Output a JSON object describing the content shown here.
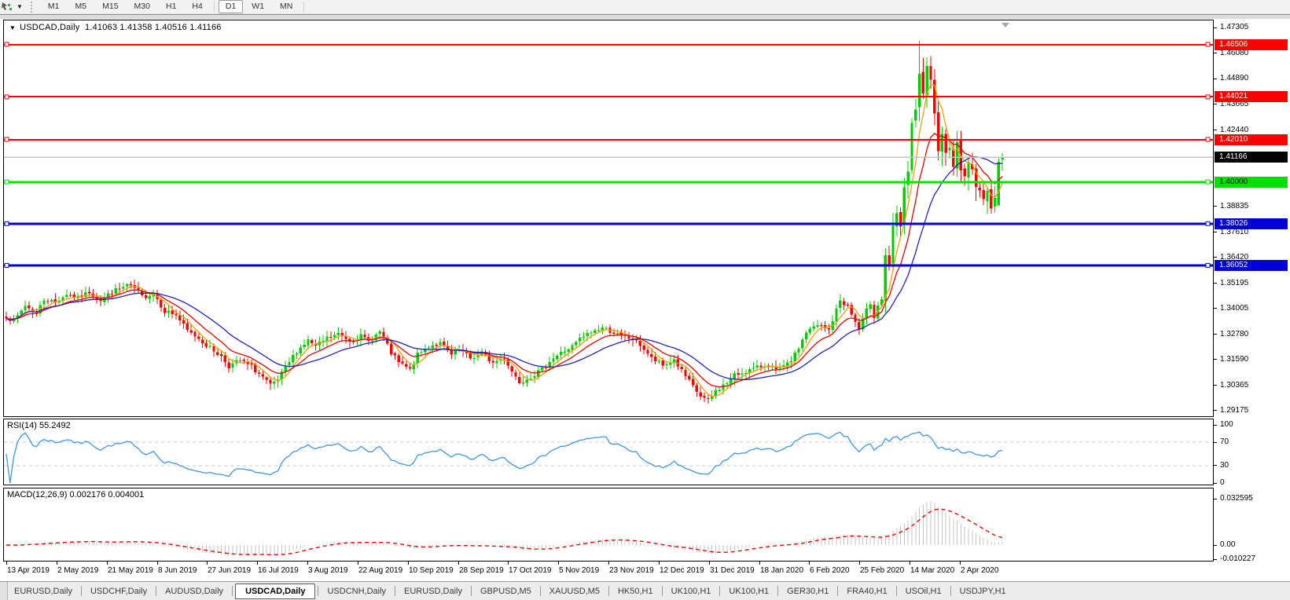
{
  "toolbar": {
    "timeframes": [
      "M1",
      "M5",
      "M15",
      "M30",
      "H1",
      "H4",
      "D1",
      "W1",
      "MN"
    ],
    "active_timeframe": "D1"
  },
  "icons": {
    "chart_mode": "cursor-chart-icon",
    "toolbar_dropdown": "▼",
    "symbol_dropdown": "▼",
    "shift_marker": "▼"
  },
  "chart": {
    "title_symbol": "USDCAD,Daily",
    "title_ohlc": "1.41063 1.41358 1.40516 1.41166"
  },
  "rsi": {
    "label": "RSI(14) 55.2492"
  },
  "macd": {
    "label": "MACD(12,26,9) 0.002176 0.004001"
  },
  "price_axis": {
    "ticks": [
      {
        "label": "1.47305",
        "price": 1.47305
      },
      {
        "label": "1.46080",
        "price": 1.4608
      },
      {
        "label": "1.44890",
        "price": 1.4489
      },
      {
        "label": "1.43665",
        "price": 1.43665
      },
      {
        "label": "1.42440",
        "price": 1.4244
      },
      {
        "label": "1.38835",
        "price": 1.38835
      },
      {
        "label": "1.37610",
        "price": 1.3761
      },
      {
        "label": "1.36420",
        "price": 1.3642
      },
      {
        "label": "1.35195",
        "price": 1.35195
      },
      {
        "label": "1.34005",
        "price": 1.34005
      },
      {
        "label": "1.32780",
        "price": 1.3278
      },
      {
        "label": "1.31590",
        "price": 1.3159
      },
      {
        "label": "1.30365",
        "price": 1.30365
      },
      {
        "label": "1.29175",
        "price": 1.29175
      }
    ],
    "badges": [
      {
        "label": "1.46506",
        "price": 1.46506,
        "bg": "#fb0000",
        "fg": "#ffffff"
      },
      {
        "label": "1.44021",
        "price": 1.44021,
        "bg": "#fb0000",
        "fg": "#ffffff"
      },
      {
        "label": "1.42010",
        "price": 1.4201,
        "bg": "#fb0000",
        "fg": "#ffffff"
      },
      {
        "label": "1.41166",
        "price": 1.41166,
        "bg": "#000000",
        "fg": "#ffffff"
      },
      {
        "label": "1.40000",
        "price": 1.4,
        "bg": "#00e000",
        "fg": "#000000"
      },
      {
        "label": "1.38026",
        "price": 1.38026,
        "bg": "#0000d7",
        "fg": "#ffffff"
      },
      {
        "label": "1.36052",
        "price": 1.36052,
        "bg": "#0000d7",
        "fg": "#ffffff"
      }
    ],
    "rsi_ticks": [
      {
        "label": "100",
        "v": 100
      },
      {
        "label": "70",
        "v": 70
      },
      {
        "label": "30",
        "v": 30
      },
      {
        "label": "0",
        "v": 0
      }
    ],
    "macd_ticks": [
      {
        "label": "0.032595",
        "v": 0.032595
      },
      {
        "label": "0.00",
        "v": 0
      },
      {
        "label": "-0.010227",
        "v": -0.010227
      }
    ]
  },
  "date_axis": {
    "labels": [
      "13 Apr 2019",
      "2 May 2019",
      "21 May 2019",
      "8 Jun 2019",
      "27 Jun 2019",
      "16 Jul 2019",
      "3 Aug 2019",
      "22 Aug 2019",
      "10 Sep 2019",
      "28 Sep 2019",
      "17 Oct 2019",
      "5 Nov 2019",
      "23 Nov 2019",
      "12 Dec 2019",
      "31 Dec 2019",
      "18 Jan 2020",
      "6 Feb 2020",
      "25 Feb 2020",
      "14 Mar 2020",
      "2 Apr 2020"
    ]
  },
  "tabs": {
    "active_index": 3,
    "items": [
      "EURUSD,Daily",
      "USDCHF,Daily",
      "AUDUSD,Daily",
      "USDCAD,Daily",
      "USDCNH,Daily",
      "EURUSD,Daily",
      "GBPUSD,M5",
      "XAUUSD,M5",
      "HK50,H1",
      "UK100,H1",
      "UK100,H1",
      "GER30,H1",
      "FRA40,H1",
      "USOil,H1",
      "USDJPY,H1"
    ]
  },
  "chart_data": {
    "type": "candlestick",
    "symbol": "USDCAD",
    "timeframe": "Daily",
    "visible_range": {
      "start": "13 Apr 2019",
      "end": "2 Apr 2020 (+ bars to mid Apr 2020)"
    },
    "num_bars": 265,
    "ylim": [
      1.2892,
      1.4761
    ],
    "last_bar": {
      "open": 1.41063,
      "high": 1.41358,
      "low": 1.40516,
      "close": 1.41166
    },
    "close_anchors": [
      [
        0,
        1.3365
      ],
      [
        2,
        1.334
      ],
      [
        5,
        1.3415
      ],
      [
        8,
        1.338
      ],
      [
        10,
        1.3445
      ],
      [
        13,
        1.343
      ],
      [
        16,
        1.347
      ],
      [
        19,
        1.345
      ],
      [
        22,
        1.348
      ],
      [
        25,
        1.344
      ],
      [
        28,
        1.348
      ],
      [
        31,
        1.35
      ],
      [
        32,
        1.3512
      ],
      [
        34,
        1.3495
      ],
      [
        36,
        1.3455
      ],
      [
        39,
        1.3475
      ],
      [
        42,
        1.339
      ],
      [
        45,
        1.337
      ],
      [
        48,
        1.3295
      ],
      [
        51,
        1.326
      ],
      [
        54,
        1.3215
      ],
      [
        57,
        1.3175
      ],
      [
        59,
        1.313
      ],
      [
        62,
        1.3155
      ],
      [
        65,
        1.3125
      ],
      [
        68,
        1.3075
      ],
      [
        70,
        1.3035
      ],
      [
        72,
        1.306
      ],
      [
        74,
        1.312
      ],
      [
        77,
        1.32
      ],
      [
        80,
        1.325
      ],
      [
        82,
        1.322
      ],
      [
        85,
        1.326
      ],
      [
        88,
        1.328
      ],
      [
        91,
        1.325
      ],
      [
        94,
        1.327
      ],
      [
        96,
        1.3245
      ],
      [
        99,
        1.329
      ],
      [
        102,
        1.319
      ],
      [
        104,
        1.3145
      ],
      [
        107,
        1.311
      ],
      [
        109,
        1.318
      ],
      [
        112,
        1.3225
      ],
      [
        115,
        1.3235
      ],
      [
        118,
        1.318
      ],
      [
        120,
        1.3205
      ],
      [
        123,
        1.3165
      ],
      [
        126,
        1.319
      ],
      [
        129,
        1.3145
      ],
      [
        132,
        1.317
      ],
      [
        134,
        1.3105
      ],
      [
        136,
        1.3055
      ],
      [
        139,
        1.308
      ],
      [
        142,
        1.311
      ],
      [
        144,
        1.3155
      ],
      [
        147,
        1.319
      ],
      [
        150,
        1.322
      ],
      [
        152,
        1.3255
      ],
      [
        155,
        1.329
      ],
      [
        158,
        1.331
      ],
      [
        160,
        1.3295
      ],
      [
        163,
        1.327
      ],
      [
        166,
        1.3255
      ],
      [
        168,
        1.323
      ],
      [
        171,
        1.3165
      ],
      [
        174,
        1.313
      ],
      [
        177,
        1.316
      ],
      [
        179,
        1.3105
      ],
      [
        182,
        1.303
      ],
      [
        184,
        1.2985
      ],
      [
        186,
        1.2962
      ],
      [
        188,
        1.301
      ],
      [
        191,
        1.305
      ],
      [
        193,
        1.3085
      ],
      [
        196,
        1.3105
      ],
      [
        199,
        1.312
      ],
      [
        202,
        1.314
      ],
      [
        204,
        1.3105
      ],
      [
        207,
        1.3135
      ],
      [
        209,
        1.318
      ],
      [
        212,
        1.329
      ],
      [
        215,
        1.332
      ],
      [
        218,
        1.33
      ],
      [
        221,
        1.344
      ],
      [
        223,
        1.341
      ],
      [
        226,
        1.33
      ],
      [
        228,
        1.339
      ],
      [
        229,
        1.343
      ],
      [
        230,
        1.3365
      ],
      [
        231,
        1.342
      ],
      [
        232,
        1.3445
      ],
      [
        233,
        1.366
      ],
      [
        234,
        1.358
      ],
      [
        235,
        1.377
      ],
      [
        236,
        1.385
      ],
      [
        237,
        1.376
      ],
      [
        238,
        1.399
      ],
      [
        239,
        1.405
      ],
      [
        240,
        1.425
      ],
      [
        241,
        1.433
      ],
      [
        242,
        1.449
      ],
      [
        243,
        1.443
      ],
      [
        244,
        1.452
      ],
      [
        245,
        1.445
      ],
      [
        246,
        1.43
      ],
      [
        247,
        1.418
      ],
      [
        248,
        1.425
      ],
      [
        249,
        1.412
      ],
      [
        250,
        1.419
      ],
      [
        251,
        1.41
      ],
      [
        252,
        1.416
      ],
      [
        253,
        1.407
      ],
      [
        254,
        1.402
      ],
      [
        255,
        1.411
      ],
      [
        256,
        1.404
      ],
      [
        257,
        1.396
      ],
      [
        258,
        1.399
      ],
      [
        259,
        1.392
      ],
      [
        260,
        1.394
      ],
      [
        261,
        1.389
      ],
      [
        262,
        1.394
      ],
      [
        263,
        1.4095
      ],
      [
        264,
        1.41166
      ]
    ],
    "key_candles": [
      {
        "i": 32,
        "high": 1.3521
      },
      {
        "i": 70,
        "low": 1.3016
      },
      {
        "i": 136,
        "low": 1.3042
      },
      {
        "i": 186,
        "low": 1.2951
      },
      {
        "i": 242,
        "high": 1.4668
      },
      {
        "i": 261,
        "low": 1.385
      },
      {
        "i": 263,
        "open": 1.389,
        "close": 1.4095
      },
      {
        "i": 264,
        "open": 1.41063,
        "high": 1.41358,
        "low": 1.40516,
        "close": 1.41166
      }
    ],
    "horizontal_lines": [
      {
        "price": 1.46506,
        "color": "#fb0000",
        "width": 2
      },
      {
        "price": 1.44021,
        "color": "#fb0000",
        "width": 2
      },
      {
        "price": 1.4201,
        "color": "#fb0000",
        "width": 2
      },
      {
        "price": 1.4,
        "color": "#00e400",
        "width": 3
      },
      {
        "price": 1.38026,
        "color": "#0000dc",
        "width": 3
      },
      {
        "price": 1.36052,
        "color": "#0000dc",
        "width": 3
      }
    ],
    "current_price_line": {
      "price": 1.41166,
      "color": "#c4c4c4"
    },
    "moving_averages": [
      {
        "name": "fast",
        "type": "sma",
        "period": 5,
        "color": "#ff9e00"
      },
      {
        "name": "mid",
        "type": "ema",
        "period": 11,
        "color": "#f00000"
      },
      {
        "name": "slow",
        "type": "lwma",
        "period": 30,
        "color": "#2323bd"
      }
    ],
    "rsi": {
      "period": 14,
      "last": 55.2492,
      "levels": [
        70,
        30
      ],
      "line_color": "#3e97e8",
      "level_color": "#c8c8c8"
    },
    "macd": {
      "fast": 12,
      "slow": 26,
      "signal_period": 9,
      "last_macd": 0.002176,
      "last_signal": 0.004001,
      "axis_max": 0.032595,
      "axis_min": -0.010227,
      "hist_color": "#c4c4c4",
      "signal_color": "#fb0000"
    },
    "candle_colors": {
      "up": "#00cc00",
      "down": "#fb0000"
    }
  }
}
